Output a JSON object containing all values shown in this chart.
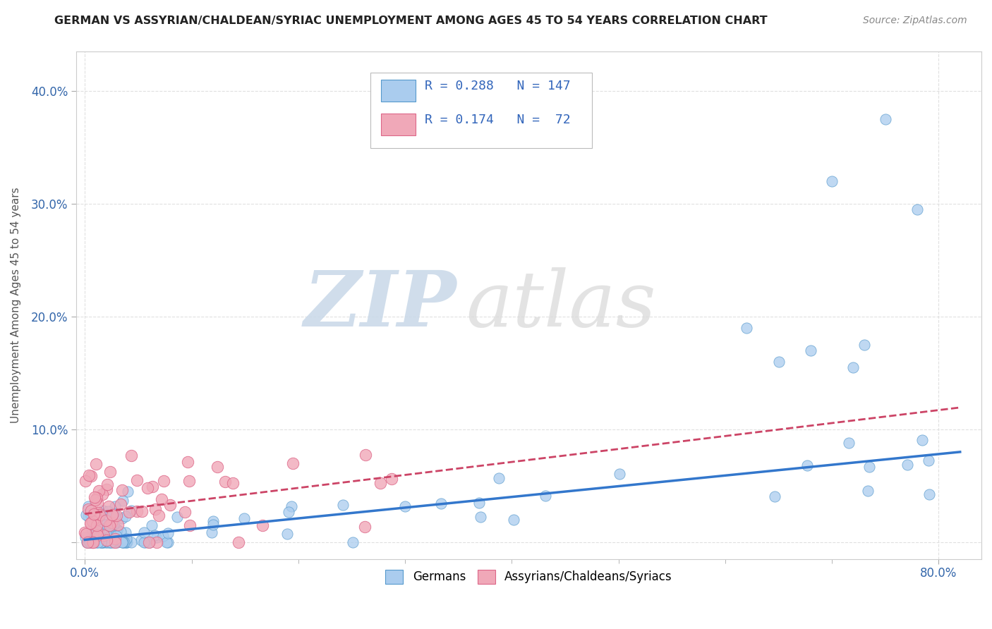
{
  "title": "GERMAN VS ASSYRIAN/CHALDEAN/SYRIAC UNEMPLOYMENT AMONG AGES 45 TO 54 YEARS CORRELATION CHART",
  "source": "Source: ZipAtlas.com",
  "ylabel": "Unemployment Among Ages 45 to 54 years",
  "xlim": [
    -0.008,
    0.84
  ],
  "ylim": [
    -0.015,
    0.435
  ],
  "xticks": [
    0.0,
    0.8
  ],
  "xticklabels": [
    "0.0%",
    "80.0%"
  ],
  "yticks": [
    0.0,
    0.1,
    0.2,
    0.3,
    0.4
  ],
  "yticklabels": [
    "",
    "10.0%",
    "20.0%",
    "30.0%",
    "40.0%"
  ],
  "german_color": "#aaccee",
  "assyrian_color": "#f0a8b8",
  "german_edge": "#5599cc",
  "assyrian_edge": "#dd6688",
  "trend_german_color": "#3377cc",
  "trend_assyrian_color": "#cc4466",
  "bottom_legend_german": "Germans",
  "bottom_legend_assyrian": "Assyrians/Chaldeans/Syriacs",
  "watermark_zip": "ZIP",
  "watermark_atlas": "atlas",
  "german_slope": 0.095,
  "german_intercept": 0.002,
  "assyrian_slope": 0.115,
  "assyrian_intercept": 0.025,
  "grid_color": "#dddddd",
  "tick_color": "#3366aa"
}
